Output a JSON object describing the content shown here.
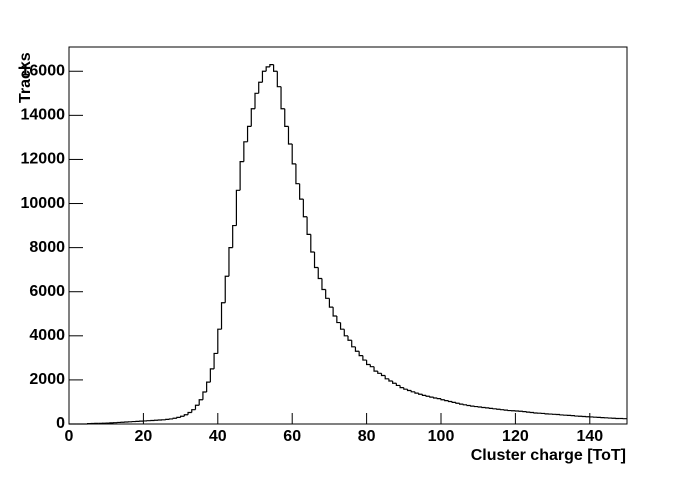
{
  "chart_data": {
    "type": "histogram",
    "xlabel": "Cluster charge [ToT]",
    "ylabel": "Tracks",
    "bins": [
      0,
      1,
      2,
      3,
      4,
      5,
      6,
      7,
      8,
      9,
      10,
      11,
      12,
      13,
      14,
      15,
      16,
      17,
      18,
      19,
      20,
      21,
      22,
      23,
      24,
      25,
      26,
      27,
      28,
      29,
      30,
      31,
      32,
      33,
      34,
      35,
      36,
      37,
      38,
      39,
      40,
      41,
      42,
      43,
      44,
      45,
      46,
      47,
      48,
      49,
      50,
      51,
      52,
      53,
      54,
      55,
      56,
      57,
      58,
      59,
      60,
      61,
      62,
      63,
      64,
      65,
      66,
      67,
      68,
      69,
      70,
      71,
      72,
      73,
      74,
      75,
      76,
      77,
      78,
      79,
      80,
      81,
      82,
      83,
      84,
      85,
      86,
      87,
      88,
      89,
      90,
      91,
      92,
      93,
      94,
      95,
      96,
      97,
      98,
      99,
      100,
      101,
      102,
      103,
      104,
      105,
      106,
      107,
      108,
      109,
      110,
      111,
      112,
      113,
      114,
      115,
      116,
      117,
      118,
      119,
      120,
      121,
      122,
      123,
      124,
      125,
      126,
      127,
      128,
      129,
      130,
      131,
      132,
      133,
      134,
      135,
      136,
      137,
      138,
      139,
      140,
      141,
      142,
      143,
      144,
      145,
      146,
      147,
      148,
      149,
      150
    ],
    "values": [
      0,
      0,
      0,
      0,
      0,
      20,
      25,
      30,
      30,
      35,
      40,
      50,
      60,
      70,
      80,
      90,
      100,
      110,
      120,
      130,
      140,
      150,
      160,
      170,
      180,
      190,
      210,
      230,
      260,
      300,
      350,
      420,
      520,
      650,
      850,
      1100,
      1450,
      1900,
      2500,
      3200,
      4300,
      5500,
      6700,
      8000,
      9000,
      10600,
      11900,
      12800,
      13500,
      14300,
      15000,
      15500,
      16000,
      16200,
      16300,
      16000,
      15300,
      14300,
      13500,
      12700,
      11800,
      10900,
      10200,
      9400,
      8600,
      7800,
      7100,
      6600,
      6100,
      5700,
      5300,
      4900,
      4600,
      4300,
      4000,
      3800,
      3500,
      3300,
      3100,
      2900,
      2700,
      2600,
      2400,
      2300,
      2200,
      2050,
      1950,
      1850,
      1750,
      1650,
      1580,
      1520,
      1460,
      1400,
      1350,
      1300,
      1260,
      1220,
      1180,
      1150,
      1100,
      1060,
      1020,
      980,
      940,
      900,
      870,
      840,
      810,
      790,
      770,
      750,
      730,
      710,
      690,
      670,
      650,
      630,
      610,
      600,
      590,
      580,
      560,
      540,
      520,
      500,
      490,
      480,
      460,
      450,
      440,
      430,
      410,
      400,
      390,
      380,
      360,
      350,
      340,
      330,
      320,
      310,
      300,
      290,
      280,
      270,
      260,
      250,
      250,
      240
    ],
    "color": "#000000",
    "xlim": [
      0,
      150
    ],
    "xticks": [
      0,
      20,
      40,
      60,
      80,
      100,
      120,
      140
    ],
    "ylim": [
      0,
      17100
    ],
    "yticks": [
      0,
      2000,
      4000,
      6000,
      8000,
      10000,
      12000,
      14000,
      16000
    ]
  }
}
